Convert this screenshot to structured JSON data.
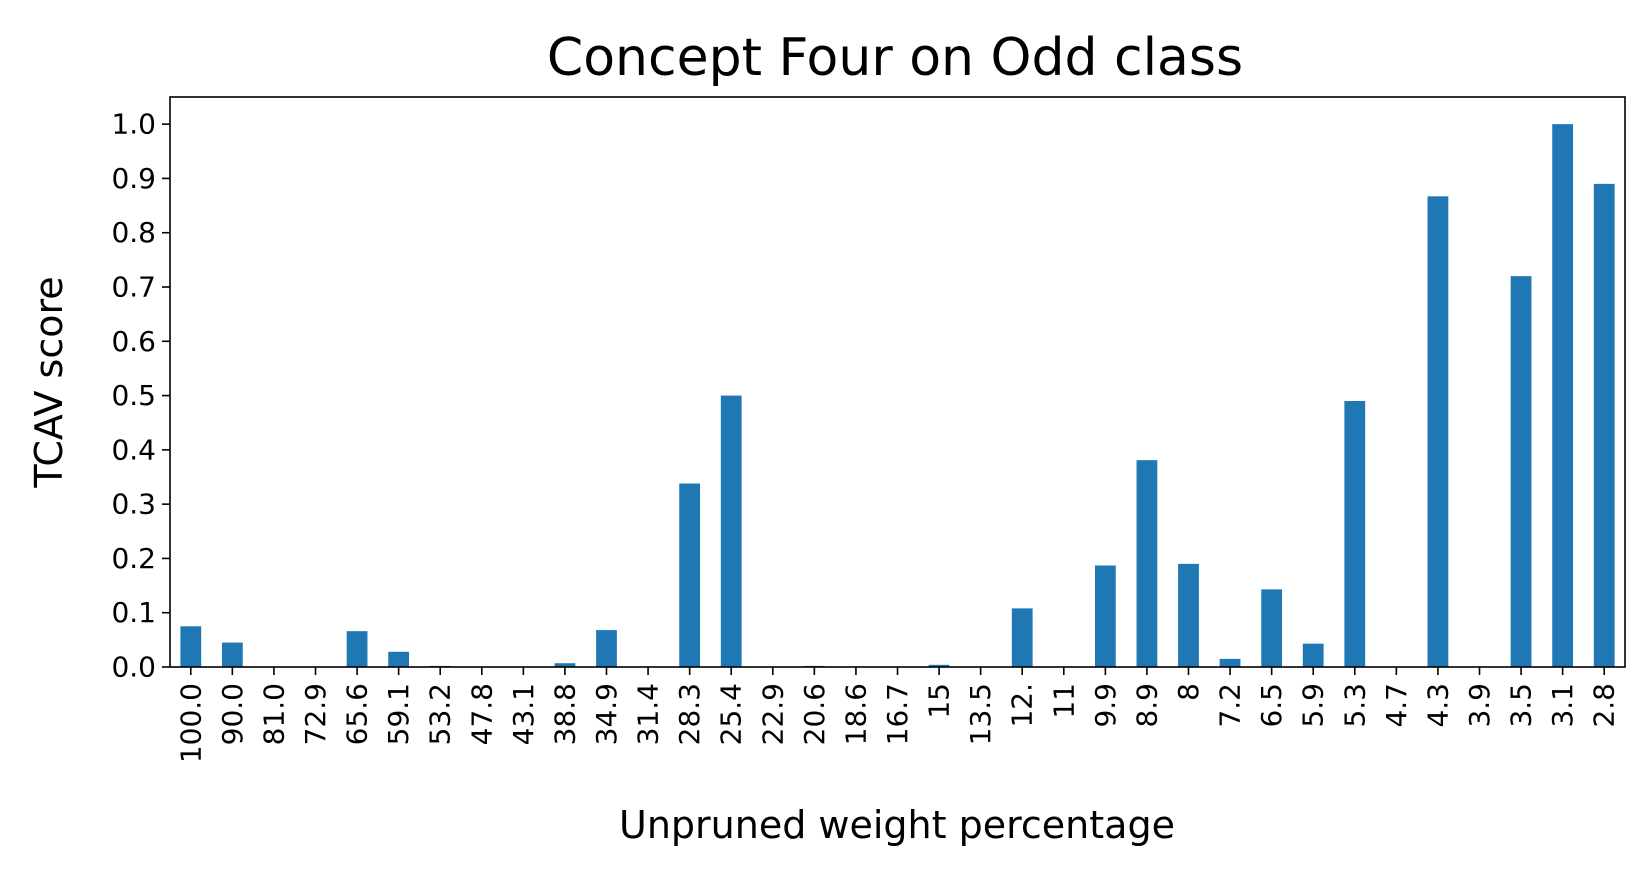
{
  "chart_data": {
    "type": "bar",
    "title": "Concept Four on Odd class",
    "xlabel": "Unpruned weight percentage",
    "ylabel": "TCAV score",
    "ylim": [
      0,
      1.05
    ],
    "yticks": [
      "0.0",
      "0.1",
      "0.2",
      "0.3",
      "0.4",
      "0.5",
      "0.6",
      "0.7",
      "0.8",
      "0.9",
      "1.0"
    ],
    "categories": [
      "100.0",
      "90.0",
      "81.0",
      "72.9",
      "65.6",
      "59.1",
      "53.2",
      "47.8",
      "43.1",
      "38.8",
      "34.9",
      "31.4",
      "28.3",
      "25.4",
      "22.9",
      "20.6",
      "18.6",
      "16.7",
      "15",
      "13.5",
      "12.",
      "11",
      "9.9",
      "8.9",
      "8",
      "7.2",
      "6.5",
      "5.9",
      "5.3",
      "4.7",
      "4.3",
      "3.9",
      "3.5",
      "3.1",
      "2.8"
    ],
    "values": [
      0.075,
      0.045,
      0,
      0,
      0.066,
      0.028,
      0.002,
      0,
      0,
      0.007,
      0.068,
      0,
      0.338,
      0.5,
      0,
      0.002,
      0,
      0,
      0.004,
      0,
      0.108,
      0,
      0.187,
      0.381,
      0.19,
      0.015,
      0.143,
      0.043,
      0.49,
      0,
      0.867,
      0,
      0.72,
      1.0,
      0.89
    ],
    "bar_color": "#1f77b4",
    "grid": false,
    "legend": false
  }
}
